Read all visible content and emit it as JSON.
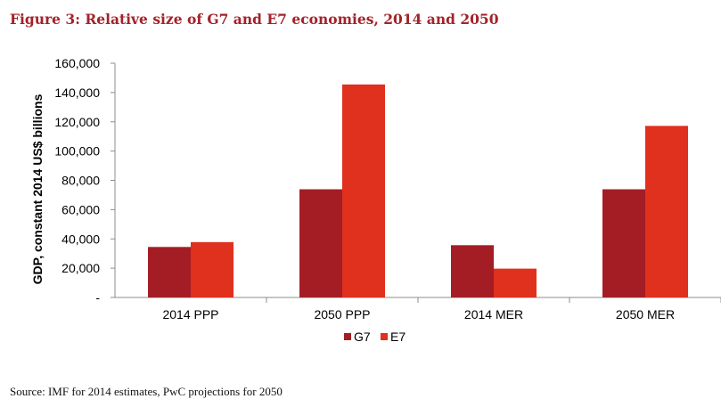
{
  "figure_title": "Figure 3: Relative size of G7 and E7 economies, 2014 and 2050",
  "source_note": "Source: IMF for 2014 estimates, PwC projections for 2050",
  "chart_data": {
    "type": "bar",
    "categories": [
      "2014 PPP",
      "2050 PPP",
      "2014 MER",
      "2050 MER"
    ],
    "series": [
      {
        "name": "G7",
        "color": "#a51d24",
        "values": [
          34500,
          73900,
          35700,
          73900
        ]
      },
      {
        "name": "E7",
        "color": "#e0301e",
        "values": [
          37800,
          145500,
          19700,
          117200
        ]
      }
    ],
    "title": "",
    "xlabel": "",
    "ylabel": "GDP, constant 2014 US$ billions",
    "ylim": [
      0,
      160000
    ],
    "yticks": [
      0,
      20000,
      40000,
      60000,
      80000,
      100000,
      120000,
      140000,
      160000
    ],
    "ytick_labels": [
      "-",
      "20,000",
      "40,000",
      "60,000",
      "80,000",
      "100,000",
      "120,000",
      "140,000",
      "160,000"
    ],
    "grid": false,
    "legend": "bottom-center"
  }
}
